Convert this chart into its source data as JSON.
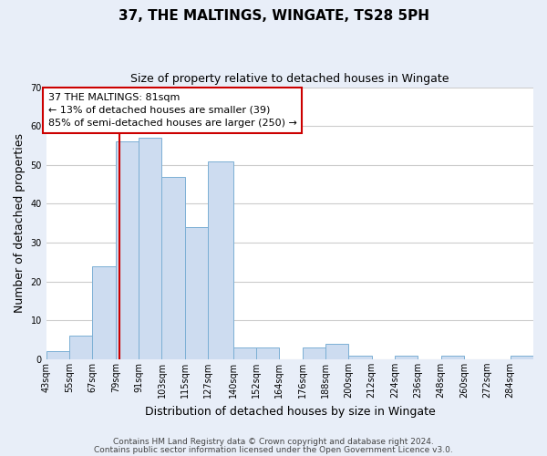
{
  "title": "37, THE MALTINGS, WINGATE, TS28 5PH",
  "subtitle": "Size of property relative to detached houses in Wingate",
  "xlabel": "Distribution of detached houses by size in Wingate",
  "ylabel": "Number of detached properties",
  "bin_labels": [
    "43sqm",
    "55sqm",
    "67sqm",
    "79sqm",
    "91sqm",
    "103sqm",
    "115sqm",
    "127sqm",
    "140sqm",
    "152sqm",
    "164sqm",
    "176sqm",
    "188sqm",
    "200sqm",
    "212sqm",
    "224sqm",
    "236sqm",
    "248sqm",
    "260sqm",
    "272sqm",
    "284sqm"
  ],
  "bin_edges": [
    43,
    55,
    67,
    79,
    91,
    103,
    115,
    127,
    140,
    152,
    164,
    176,
    188,
    200,
    212,
    224,
    236,
    248,
    260,
    272,
    284,
    296
  ],
  "bar_values": [
    2,
    6,
    24,
    56,
    57,
    47,
    34,
    51,
    3,
    3,
    0,
    3,
    4,
    1,
    0,
    1,
    0,
    1,
    0,
    0,
    1
  ],
  "bar_color": "#cddcf0",
  "bar_edge_color": "#7bafd4",
  "ylim": [
    0,
    70
  ],
  "yticks": [
    0,
    10,
    20,
    30,
    40,
    50,
    60,
    70
  ],
  "vline_x": 81,
  "vline_color": "#cc0000",
  "annotation_text": "37 THE MALTINGS: 81sqm\n← 13% of detached houses are smaller (39)\n85% of semi-detached houses are larger (250) →",
  "annotation_box_facecolor": "#ffffff",
  "annotation_box_edgecolor": "#cc0000",
  "footer_line1": "Contains HM Land Registry data © Crown copyright and database right 2024.",
  "footer_line2": "Contains public sector information licensed under the Open Government Licence v3.0.",
  "fig_facecolor": "#e8eef8",
  "ax_facecolor": "#ffffff",
  "grid_color": "#cccccc",
  "title_fontsize": 11,
  "subtitle_fontsize": 9,
  "axis_label_fontsize": 9,
  "tick_fontsize": 7,
  "annotation_fontsize": 8,
  "footer_fontsize": 6.5
}
